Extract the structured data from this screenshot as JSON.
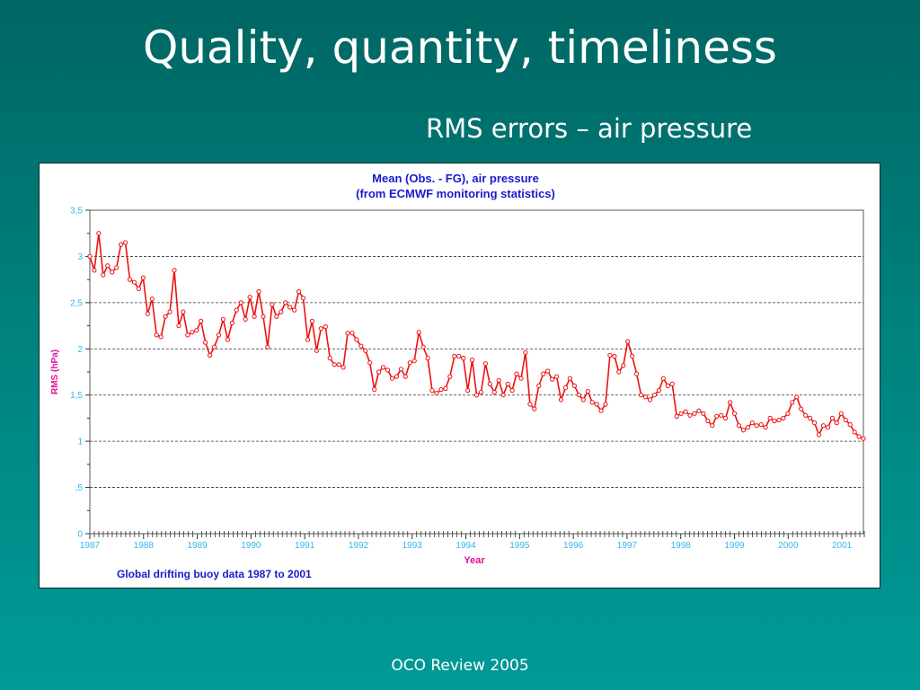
{
  "slide": {
    "title": "Quality, quantity, timeliness",
    "subtitle": "RMS errors – air pressure",
    "footer": "OCO Review 2005"
  },
  "chart_data": {
    "type": "line",
    "title": "Mean (Obs. - FG), air pressure",
    "subtitle": "(from ECMWF monitoring statistics)",
    "xlabel": "Year",
    "ylabel": "RMS (hPa)",
    "annotation": "Global drifting buoy data 1987 to 2001",
    "xlim": [
      1987,
      2001.4
    ],
    "ylim": [
      0,
      3.5
    ],
    "x_ticks": [
      {
        "value": 1987,
        "label": "1987"
      },
      {
        "value": 1988,
        "label": "1988"
      },
      {
        "value": 1989,
        "label": "1989"
      },
      {
        "value": 1990,
        "label": "1990"
      },
      {
        "value": 1991,
        "label": "1991"
      },
      {
        "value": 1992,
        "label": "1992"
      },
      {
        "value": 1993,
        "label": "1993"
      },
      {
        "value": 1994,
        "label": "1994"
      },
      {
        "value": 1995,
        "label": "1995"
      },
      {
        "value": 1996,
        "label": "1996"
      },
      {
        "value": 1997,
        "label": "1997"
      },
      {
        "value": 1998,
        "label": "1998"
      },
      {
        "value": 1999,
        "label": "1999"
      },
      {
        "value": 2000,
        "label": "2000"
      },
      {
        "value": 2001,
        "label": "2001"
      }
    ],
    "y_ticks": [
      {
        "value": 0,
        "label": "0"
      },
      {
        "value": 0.5,
        "label": ",5"
      },
      {
        "value": 1,
        "label": "1"
      },
      {
        "value": 1.5,
        "label": "1,5"
      },
      {
        "value": 2,
        "label": "2"
      },
      {
        "value": 2.5,
        "label": "2,5"
      },
      {
        "value": 3,
        "label": "3"
      },
      {
        "value": 3.5,
        "label": "3,5"
      }
    ],
    "grid": "horizontal dashed",
    "colors": {
      "series": "#ee1111",
      "title": "#1a1acc",
      "axis_labels": "#e0109a",
      "tick_labels": "#33b6f0",
      "annotation": "#1a1acc"
    },
    "series": [
      {
        "values": [
          3.0,
          2.85,
          3.25,
          2.8,
          2.9,
          2.83,
          2.88,
          3.13,
          3.15,
          2.75,
          2.72,
          2.65,
          2.77,
          2.38,
          2.54,
          2.15,
          2.13,
          2.35,
          2.4,
          2.85,
          2.25,
          2.4,
          2.15,
          2.18,
          2.2,
          2.3,
          2.07,
          1.93,
          2.02,
          2.15,
          2.32,
          2.1,
          2.28,
          2.42,
          2.5,
          2.32,
          2.56,
          2.35,
          2.62,
          2.35,
          2.02,
          2.48,
          2.35,
          2.4,
          2.5,
          2.45,
          2.42,
          2.62,
          2.55,
          2.1,
          2.3,
          1.98,
          2.22,
          2.24,
          1.9,
          1.83,
          1.83,
          1.8,
          2.17,
          2.17,
          2.1,
          2.03,
          1.98,
          1.85,
          1.56,
          1.75,
          1.8,
          1.77,
          1.68,
          1.7,
          1.78,
          1.7,
          1.85,
          1.87,
          2.18,
          2.02,
          1.9,
          1.55,
          1.52,
          1.56,
          1.57,
          1.7,
          1.92,
          1.92,
          1.9,
          1.55,
          1.88,
          1.5,
          1.53,
          1.84,
          1.62,
          1.53,
          1.66,
          1.5,
          1.62,
          1.55,
          1.73,
          1.68,
          1.96,
          1.4,
          1.35,
          1.6,
          1.73,
          1.76,
          1.67,
          1.7,
          1.45,
          1.58,
          1.68,
          1.6,
          1.5,
          1.45,
          1.54,
          1.42,
          1.4,
          1.33,
          1.4,
          1.93,
          1.92,
          1.75,
          1.82,
          2.08,
          1.92,
          1.73,
          1.5,
          1.48,
          1.45,
          1.5,
          1.55,
          1.68,
          1.6,
          1.62,
          1.27,
          1.3,
          1.32,
          1.28,
          1.3,
          1.33,
          1.3,
          1.22,
          1.17,
          1.27,
          1.28,
          1.25,
          1.42,
          1.3,
          1.17,
          1.12,
          1.15,
          1.2,
          1.17,
          1.18,
          1.15,
          1.25,
          1.22,
          1.23,
          1.25,
          1.3,
          1.42,
          1.48,
          1.35,
          1.28,
          1.25,
          1.2,
          1.07,
          1.17,
          1.15,
          1.25,
          1.2,
          1.3,
          1.23,
          1.18,
          1.1,
          1.05,
          1.03
        ]
      }
    ]
  }
}
